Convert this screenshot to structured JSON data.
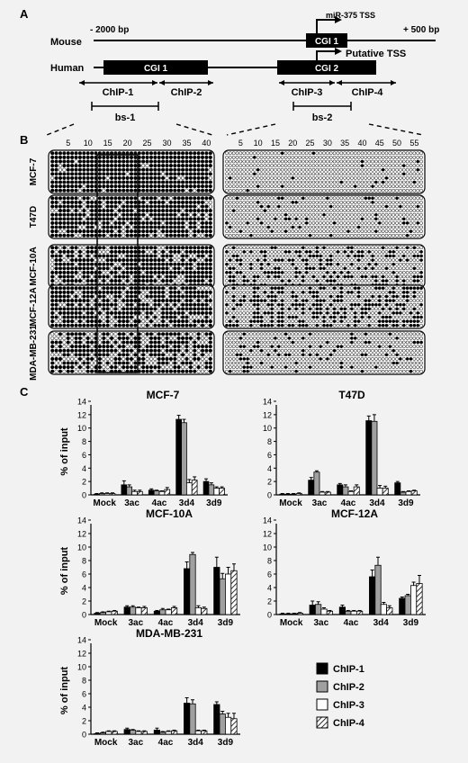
{
  "panel_a": {
    "label": "A",
    "mouse_label": "Mouse",
    "human_label": "Human",
    "left_coord": "- 2000 bp",
    "right_coord": "+ 500 bp",
    "mouse_tss": "miR-375 TSS",
    "mouse_cgi": "CGI 1",
    "human_cgi1": "CGI 1",
    "human_cgi2": "CGI 2",
    "human_tss": "Putative TSS",
    "chip_regions": [
      "ChIP-1",
      "ChIP-2",
      "ChIP-3",
      "ChIP-4"
    ],
    "bs_regions": [
      "bs-1",
      "bs-2"
    ]
  },
  "panel_b": {
    "label": "B",
    "cell_lines": [
      "MCF-7",
      "T47D",
      "MCF-10A",
      "MCF-12A",
      "MDA-MB-231"
    ],
    "ticks_bs1": [
      "5",
      "10",
      "15",
      "20",
      "25",
      "30",
      "35",
      "40"
    ],
    "ticks_bs2": [
      "5",
      "10",
      "15",
      "20",
      "25",
      "30",
      "35",
      "40",
      "45",
      "50",
      "55"
    ],
    "bs1_cpg_count": 41,
    "bs2_cpg_count": 57,
    "clones_per_line": 10,
    "methylation_fraction": {
      "MCF-7": {
        "bs1": 0.95,
        "bs2": 0.03
      },
      "T47D": {
        "bs1": 0.85,
        "bs2": 0.12
      },
      "MCF-10A": {
        "bs1": 0.75,
        "bs2": 0.35
      },
      "MCF-12A": {
        "bs1": 0.75,
        "bs2": 0.45
      },
      "MDA-MB-231": {
        "bs1": 0.65,
        "bs2": 0.15
      }
    }
  },
  "chart_data": [
    {
      "type": "bar",
      "title": "MCF-7",
      "ylabel": "% of input",
      "ylim": [
        0,
        14
      ],
      "yticks": [
        "0",
        "2",
        "4",
        "6",
        "8",
        "10",
        "12",
        "14"
      ],
      "categories": [
        "Mock",
        "3ac",
        "4ac",
        "3d4",
        "3d9"
      ],
      "series": [
        {
          "name": "ChIP-1",
          "values": [
            0.1,
            1.5,
            0.7,
            11.3,
            2.0
          ],
          "errors": [
            0.1,
            0.6,
            0.2,
            0.6,
            0.4
          ]
        },
        {
          "name": "ChIP-2",
          "values": [
            0.2,
            1.2,
            0.6,
            10.8,
            1.5
          ],
          "errors": [
            0.1,
            0.3,
            0.1,
            0.5,
            0.3
          ]
        },
        {
          "name": "ChIP-3",
          "values": [
            0.2,
            0.5,
            0.5,
            1.8,
            1.0
          ],
          "errors": [
            0.1,
            0.2,
            0.1,
            0.5,
            0.2
          ]
        },
        {
          "name": "ChIP-4",
          "values": [
            0.2,
            0.5,
            0.8,
            2.2,
            1.0
          ],
          "errors": [
            0.1,
            0.2,
            0.3,
            0.5,
            0.2
          ]
        }
      ]
    },
    {
      "type": "bar",
      "title": "T47D",
      "ylabel": "",
      "ylim": [
        0,
        14
      ],
      "yticks": [
        "0",
        "2",
        "4",
        "6",
        "8",
        "10",
        "12",
        "14"
      ],
      "categories": [
        "Mock",
        "3ac",
        "4ac",
        "3d4",
        "3d9"
      ],
      "series": [
        {
          "name": "ChIP-1",
          "values": [
            0.1,
            2.2,
            1.5,
            11.1,
            1.8
          ],
          "errors": [
            0.1,
            0.4,
            0.2,
            0.7,
            0.2
          ]
        },
        {
          "name": "ChIP-2",
          "values": [
            0.1,
            3.4,
            1.2,
            11.0,
            0.4
          ],
          "errors": [
            0.1,
            0.2,
            0.3,
            1.0,
            0.1
          ]
        },
        {
          "name": "ChIP-3",
          "values": [
            0.1,
            0.4,
            0.5,
            1.0,
            0.5
          ],
          "errors": [
            0.1,
            0.1,
            0.1,
            0.4,
            0.1
          ]
        },
        {
          "name": "ChIP-4",
          "values": [
            0.2,
            0.4,
            1.2,
            1.0,
            0.6
          ],
          "errors": [
            0.1,
            0.1,
            0.3,
            0.3,
            0.1
          ]
        }
      ]
    },
    {
      "type": "bar",
      "title": "MCF-10A",
      "ylabel": "% of input",
      "ylim": [
        0,
        14
      ],
      "yticks": [
        "0",
        "2",
        "4",
        "6",
        "8",
        "10",
        "12",
        "14"
      ],
      "categories": [
        "Mock",
        "3ac",
        "4ac",
        "3d4",
        "3d9"
      ],
      "series": [
        {
          "name": "ChIP-1",
          "values": [
            0.2,
            1.1,
            0.5,
            6.8,
            7.0
          ],
          "errors": [
            0.1,
            0.2,
            0.1,
            1.0,
            1.5
          ]
        },
        {
          "name": "ChIP-2",
          "values": [
            0.3,
            1.1,
            0.7,
            8.9,
            5.3
          ],
          "errors": [
            0.1,
            0.2,
            0.2,
            0.3,
            0.8
          ]
        },
        {
          "name": "ChIP-3",
          "values": [
            0.4,
            1.0,
            0.7,
            1.0,
            6.0
          ],
          "errors": [
            0.1,
            0.1,
            0.1,
            0.3,
            1.0
          ]
        },
        {
          "name": "ChIP-4",
          "values": [
            0.5,
            1.0,
            1.0,
            0.9,
            6.5
          ],
          "errors": [
            0.1,
            0.2,
            0.2,
            0.2,
            1.0
          ]
        }
      ]
    },
    {
      "type": "bar",
      "title": "MCF-12A",
      "ylabel": "",
      "ylim": [
        0,
        14
      ],
      "yticks": [
        "0",
        "2",
        "4",
        "6",
        "8",
        "10",
        "12",
        "14"
      ],
      "categories": [
        "Mock",
        "3ac",
        "4ac",
        "3d4",
        "3d9"
      ],
      "series": [
        {
          "name": "ChIP-1",
          "values": [
            0.1,
            1.4,
            1.1,
            5.6,
            2.4
          ],
          "errors": [
            0.1,
            0.6,
            0.3,
            1.0,
            0.2
          ]
        },
        {
          "name": "ChIP-2",
          "values": [
            0.1,
            1.5,
            0.5,
            7.3,
            2.8
          ],
          "errors": [
            0.1,
            0.4,
            0.1,
            1.2,
            0.2
          ]
        },
        {
          "name": "ChIP-3",
          "values": [
            0.1,
            0.8,
            0.5,
            1.5,
            4.3
          ],
          "errors": [
            0.1,
            0.2,
            0.1,
            0.3,
            0.5
          ]
        },
        {
          "name": "ChIP-4",
          "values": [
            0.2,
            0.5,
            0.5,
            1.0,
            4.6
          ],
          "errors": [
            0.1,
            0.1,
            0.1,
            0.3,
            1.2
          ]
        }
      ]
    },
    {
      "type": "bar",
      "title": "MDA-MB-231",
      "ylabel": "% of input",
      "ylim": [
        0,
        14
      ],
      "yticks": [
        "0",
        "2",
        "4",
        "6",
        "8",
        "10",
        "12",
        "14"
      ],
      "categories": [
        "Mock",
        "3ac",
        "4ac",
        "3d4",
        "3d9"
      ],
      "series": [
        {
          "name": "ChIP-1",
          "values": [
            0.1,
            0.7,
            0.6,
            4.6,
            4.4
          ],
          "errors": [
            0.1,
            0.2,
            0.3,
            0.8,
            0.4
          ]
        },
        {
          "name": "ChIP-2",
          "values": [
            0.2,
            0.6,
            0.3,
            4.5,
            3.0
          ],
          "errors": [
            0.1,
            0.1,
            0.1,
            0.6,
            0.4
          ]
        },
        {
          "name": "ChIP-3",
          "values": [
            0.4,
            0.4,
            0.4,
            0.5,
            2.5
          ],
          "errors": [
            0.1,
            0.1,
            0.1,
            0.1,
            0.6
          ]
        },
        {
          "name": "ChIP-4",
          "values": [
            0.4,
            0.4,
            0.5,
            0.5,
            2.3
          ],
          "errors": [
            0.1,
            0.1,
            0.1,
            0.1,
            0.8
          ]
        }
      ]
    }
  ],
  "panel_c": {
    "label": "C",
    "legend": [
      "ChIP-1",
      "ChIP-2",
      "ChIP-3",
      "ChIP-4"
    ]
  }
}
